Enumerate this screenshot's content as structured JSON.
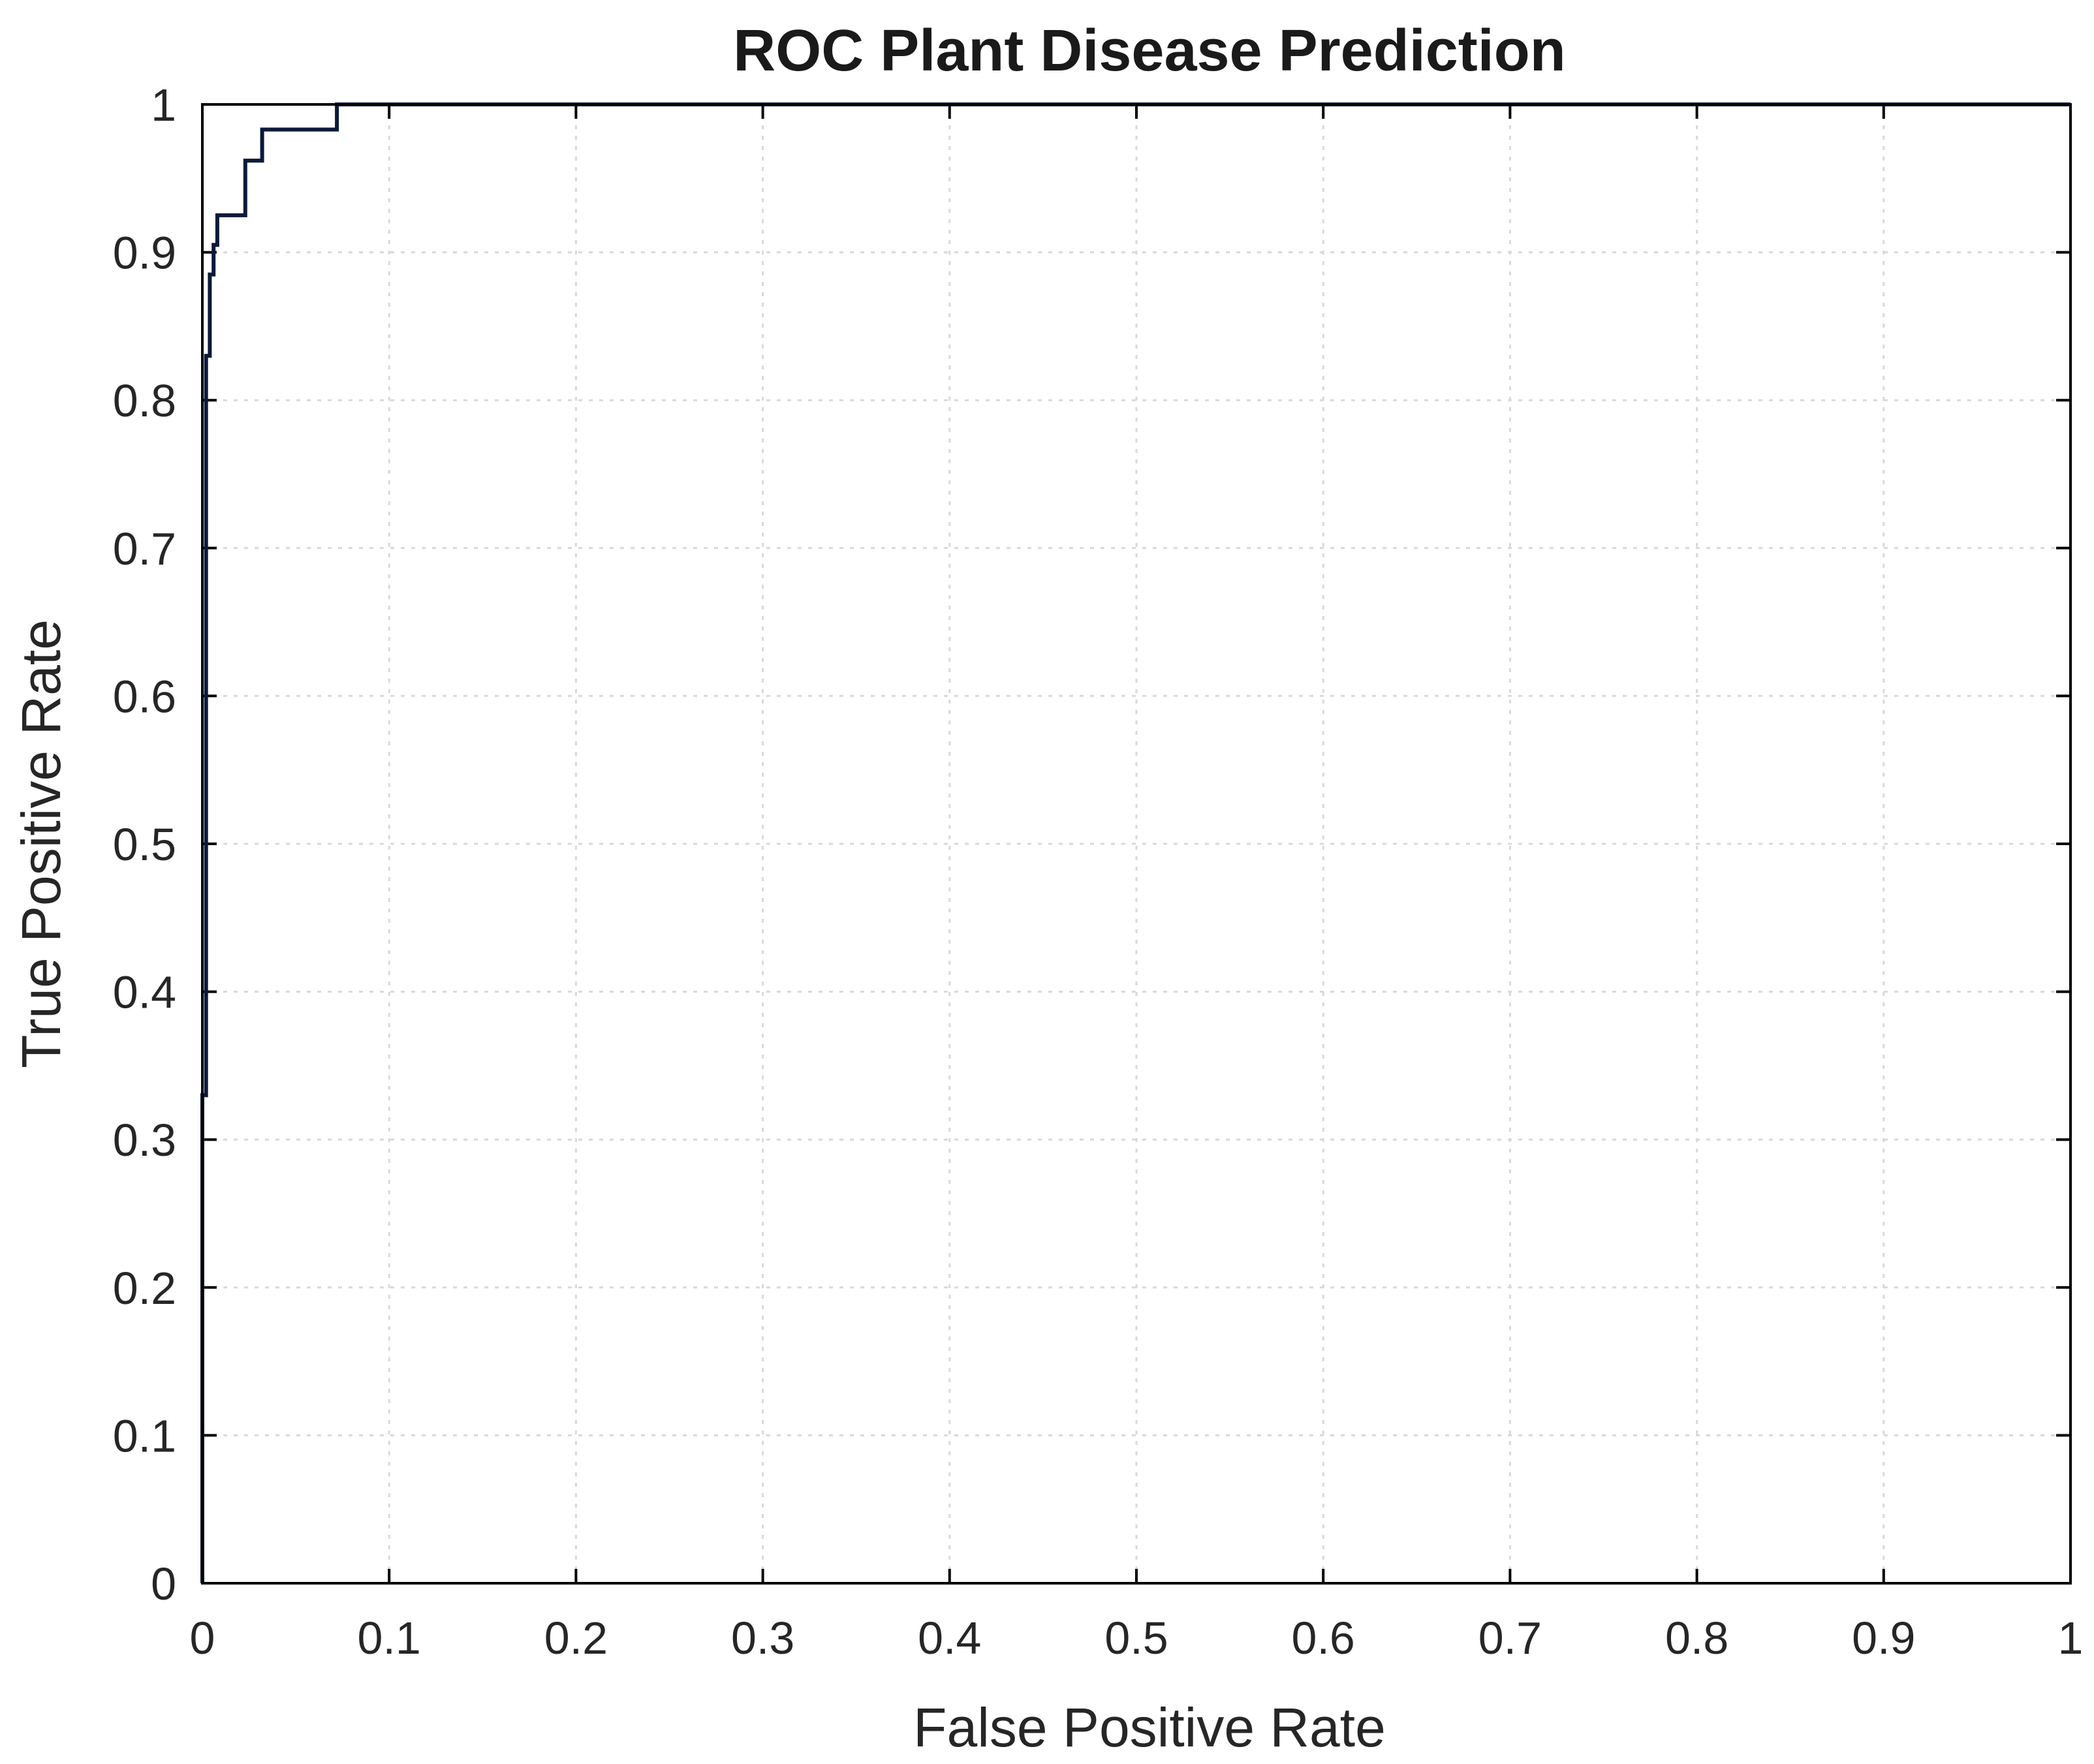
{
  "chart_data": {
    "type": "line",
    "title": "ROC Plant Disease Prediction",
    "xlabel": "False Positive Rate",
    "ylabel": "True Positive Rate",
    "xlim": [
      0,
      1
    ],
    "ylim": [
      0,
      1
    ],
    "xticks": [
      "0",
      "0.1",
      "0.2",
      "0.3",
      "0.4",
      "0.5",
      "0.6",
      "0.7",
      "0.8",
      "0.9",
      "1"
    ],
    "yticks": [
      "0",
      "0.1",
      "0.2",
      "0.3",
      "0.4",
      "0.5",
      "0.6",
      "0.7",
      "0.8",
      "0.9",
      "1"
    ],
    "grid": true,
    "legend": "none",
    "line_color": "#0b1a3a",
    "series": [
      {
        "x": [
          0.0,
          0.0,
          0.002,
          0.002,
          0.004,
          0.004,
          0.006,
          0.006,
          0.008,
          0.008,
          0.011,
          0.011,
          0.023,
          0.023,
          0.032,
          0.032,
          0.072,
          0.072,
          1.0
        ],
        "y": [
          0.0,
          0.33,
          0.33,
          0.83,
          0.83,
          0.885,
          0.885,
          0.905,
          0.905,
          0.925,
          0.925,
          0.925,
          0.925,
          0.962,
          0.962,
          0.983,
          0.983,
          1.0,
          1.0
        ]
      }
    ]
  }
}
